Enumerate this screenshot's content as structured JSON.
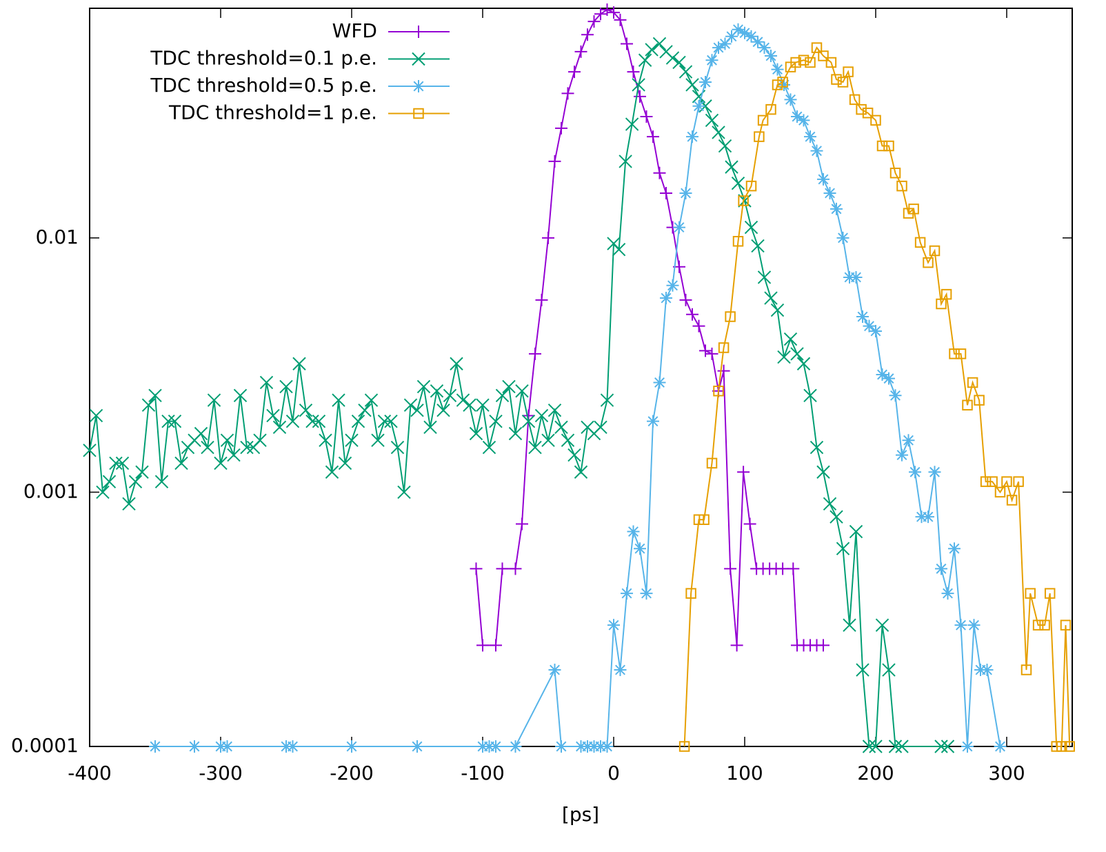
{
  "chart_data": {
    "type": "line",
    "xlabel": "[ps]",
    "xlim": [
      -400,
      350
    ],
    "ylim": [
      0.0001,
      0.08
    ],
    "log_y": true,
    "xticks": [
      -400,
      -300,
      -200,
      -100,
      0,
      100,
      200,
      300
    ],
    "yticks": [
      0.0001,
      0.001,
      0.01
    ],
    "legend": "top-left",
    "series": [
      {
        "name": "WFD",
        "color": "#9400d3",
        "marker": "plus",
        "x": [
          -105,
          -100,
          -90,
          -85,
          -75,
          -70,
          -65,
          -60,
          -55,
          -50,
          -45,
          -40,
          -35,
          -30,
          -25,
          -20,
          -15,
          -10,
          -5,
          0,
          5,
          10,
          15,
          20,
          25,
          30,
          35,
          40,
          45,
          50,
          55,
          60,
          65,
          70,
          75,
          80,
          84,
          89,
          94,
          99,
          104,
          109,
          114,
          119,
          124,
          129,
          137,
          140,
          145,
          150,
          155,
          160
        ],
        "values": [
          0.0005,
          0.00025,
          0.00025,
          0.0005,
          0.0005,
          0.00075,
          0.002,
          0.0035,
          0.0057,
          0.01,
          0.02,
          0.027,
          0.037,
          0.045,
          0.054,
          0.063,
          0.071,
          0.076,
          0.079,
          0.077,
          0.072,
          0.058,
          0.045,
          0.036,
          0.03,
          0.025,
          0.018,
          0.015,
          0.011,
          0.0077,
          0.0057,
          0.005,
          0.0045,
          0.0036,
          0.0035,
          0.0025,
          0.003,
          0.0005,
          0.00025,
          0.0012,
          0.00075,
          0.0005,
          0.0005,
          0.0005,
          0.0005,
          0.0005,
          0.0005,
          0.00025,
          0.00025,
          0.00025,
          0.00025,
          0.00025
        ]
      },
      {
        "name": "TDC threshold=0.1 p.e.",
        "color": "#009e73",
        "marker": "cross",
        "x": [
          -400,
          -395,
          -390,
          -385,
          -380,
          -375,
          -370,
          -365,
          -360,
          -355,
          -350,
          -345,
          -340,
          -335,
          -330,
          -325,
          -320,
          -315,
          -310,
          -305,
          -300,
          -295,
          -290,
          -285,
          -280,
          -275,
          -270,
          -265,
          -260,
          -255,
          -250,
          -245,
          -240,
          -235,
          -230,
          -225,
          -220,
          -215,
          -210,
          -205,
          -200,
          -195,
          -190,
          -185,
          -180,
          -175,
          -170,
          -165,
          -160,
          -155,
          -150,
          -145,
          -140,
          -135,
          -130,
          -125,
          -120,
          -115,
          -110,
          -105,
          -100,
          -95,
          -90,
          -85,
          -80,
          -75,
          -70,
          -65,
          -60,
          -55,
          -50,
          -45,
          -40,
          -35,
          -30,
          -25,
          -20,
          -15,
          -10,
          -5,
          0,
          4,
          9,
          14,
          19,
          24,
          29,
          35,
          40,
          45,
          50,
          55,
          60,
          65,
          70,
          75,
          80,
          85,
          90,
          95,
          100,
          105,
          110,
          115,
          120,
          125,
          130,
          135,
          140,
          145,
          150,
          155,
          160,
          165,
          170,
          175,
          180,
          185,
          190,
          195,
          200,
          205,
          210,
          215,
          220,
          250,
          255
        ],
        "values": [
          0.00146,
          0.002,
          0.001,
          0.0011,
          0.0013,
          0.0013,
          0.0009,
          0.0011,
          0.0012,
          0.0022,
          0.0024,
          0.0011,
          0.0019,
          0.0019,
          0.0013,
          0.0015,
          0.0016,
          0.0017,
          0.0015,
          0.0023,
          0.0013,
          0.0016,
          0.0014,
          0.0024,
          0.0015,
          0.0015,
          0.0016,
          0.0027,
          0.002,
          0.0018,
          0.0026,
          0.0019,
          0.0032,
          0.0021,
          0.0019,
          0.0019,
          0.0016,
          0.0012,
          0.0023,
          0.0013,
          0.0016,
          0.0019,
          0.0021,
          0.0023,
          0.0016,
          0.0019,
          0.0019,
          0.0015,
          0.001,
          0.0022,
          0.0021,
          0.0026,
          0.0018,
          0.0025,
          0.0021,
          0.0024,
          0.0032,
          0.0023,
          0.0022,
          0.0017,
          0.0022,
          0.0015,
          0.0019,
          0.0024,
          0.0026,
          0.0017,
          0.0025,
          0.0019,
          0.0015,
          0.002,
          0.0016,
          0.0021,
          0.0018,
          0.0016,
          0.0014,
          0.0012,
          0.0018,
          0.0017,
          0.0018,
          0.0023,
          0.0095,
          0.009,
          0.02,
          0.028,
          0.04,
          0.05,
          0.055,
          0.058,
          0.054,
          0.051,
          0.049,
          0.045,
          0.04,
          0.036,
          0.033,
          0.029,
          0.026,
          0.023,
          0.019,
          0.0164,
          0.014,
          0.011,
          0.0093,
          0.007,
          0.0058,
          0.0052,
          0.0034,
          0.004,
          0.0035,
          0.0032,
          0.0024,
          0.0015,
          0.0012,
          0.0009,
          0.0008,
          0.0006,
          0.0003,
          0.0007,
          0.0002,
          0.0001,
          0.0001,
          0.0003,
          0.0002,
          0.0001,
          0.0001,
          0.0001,
          0.0001
        ]
      },
      {
        "name": "TDC threshold=0.5 p.e.",
        "color": "#56b4e9",
        "marker": "star",
        "x": [
          -350,
          -320,
          -300,
          -295,
          -250,
          -245,
          -200,
          -150,
          -100,
          -95,
          -90,
          -75,
          -45,
          -40,
          -25,
          -20,
          -15,
          -10,
          -5,
          0,
          5,
          10,
          15,
          20,
          25,
          30,
          35,
          40,
          45,
          50,
          55,
          60,
          65,
          70,
          75,
          80,
          85,
          90,
          95,
          100,
          105,
          110,
          115,
          120,
          125,
          130,
          135,
          140,
          145,
          150,
          155,
          160,
          165,
          170,
          175,
          180,
          185,
          190,
          195,
          200,
          205,
          210,
          215,
          220,
          225,
          230,
          235,
          240,
          245,
          250,
          255,
          260,
          265,
          270,
          275,
          280,
          285,
          295
        ],
        "values": [
          0.0001,
          0.0001,
          0.0001,
          0.0001,
          0.0001,
          0.0001,
          0.0001,
          0.0001,
          0.0001,
          0.0001,
          0.0001,
          0.0001,
          0.0002,
          0.0001,
          0.0001,
          0.0001,
          0.0001,
          0.0001,
          0.0001,
          0.0003,
          0.0002,
          0.0004,
          0.0007,
          0.0006,
          0.0004,
          0.0019,
          0.0027,
          0.0058,
          0.0065,
          0.011,
          0.015,
          0.025,
          0.033,
          0.041,
          0.05,
          0.056,
          0.058,
          0.062,
          0.066,
          0.064,
          0.062,
          0.059,
          0.056,
          0.052,
          0.046,
          0.04,
          0.035,
          0.03,
          0.029,
          0.025,
          0.022,
          0.017,
          0.015,
          0.013,
          0.01,
          0.007,
          0.007,
          0.0049,
          0.0045,
          0.0043,
          0.0029,
          0.0028,
          0.0024,
          0.0014,
          0.0016,
          0.0012,
          0.0008,
          0.0008,
          0.0012,
          0.0005,
          0.0004,
          0.0006,
          0.0003,
          0.0001,
          0.0003,
          0.0002,
          0.0002,
          0.0001
        ]
      },
      {
        "name": "TDC threshold=1 p.e.",
        "color": "#e69f00",
        "marker": "box",
        "x": [
          54,
          59,
          65,
          69,
          75,
          80,
          84,
          89,
          95,
          99,
          105,
          111,
          114,
          120,
          125,
          129,
          135,
          139,
          145,
          150,
          155,
          160,
          166,
          170,
          175,
          179,
          184,
          189,
          194,
          200,
          205,
          210,
          215,
          220,
          225,
          229,
          234,
          240,
          245,
          250,
          254,
          260,
          265,
          270,
          274,
          279,
          284,
          289,
          295,
          300,
          304,
          309,
          315,
          318,
          324,
          329,
          333,
          338,
          342,
          345,
          348
        ],
        "values": [
          0.0001,
          0.0004,
          0.00078,
          0.00078,
          0.0013,
          0.0025,
          0.0037,
          0.0049,
          0.0097,
          0.014,
          0.016,
          0.025,
          0.029,
          0.032,
          0.04,
          0.041,
          0.047,
          0.049,
          0.05,
          0.049,
          0.056,
          0.052,
          0.049,
          0.042,
          0.041,
          0.045,
          0.035,
          0.032,
          0.031,
          0.029,
          0.023,
          0.023,
          0.018,
          0.016,
          0.0125,
          0.013,
          0.0096,
          0.008,
          0.0089,
          0.0055,
          0.006,
          0.0035,
          0.0035,
          0.0022,
          0.0027,
          0.0023,
          0.0011,
          0.0011,
          0.001,
          0.0011,
          0.00093,
          0.0011,
          0.0002,
          0.0004,
          0.0003,
          0.0003,
          0.0004,
          0.0001,
          0.0001,
          0.0003,
          0.0001
        ]
      }
    ]
  }
}
